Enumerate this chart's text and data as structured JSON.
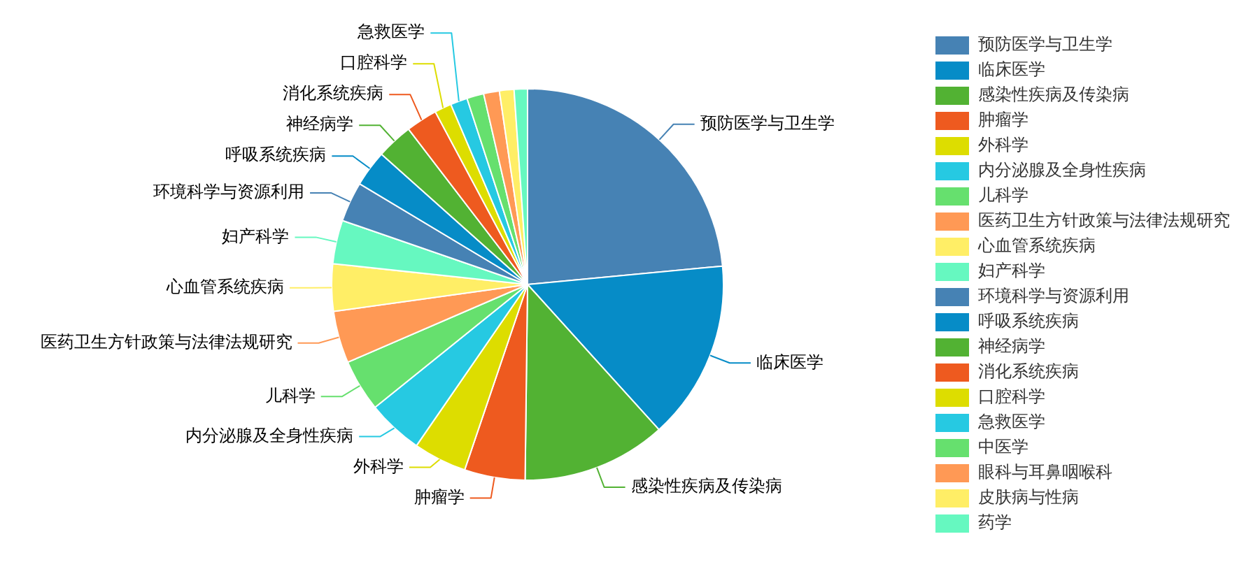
{
  "chart_data": {
    "type": "pie",
    "categories": [
      "预防医学与卫生学",
      "临床医学",
      "感染性疾病及传染病",
      "肿瘤学",
      "外科学",
      "内分泌腺及全身性疾病",
      "儿科学",
      "医药卫生方针政策与法律法规研究",
      "心血管系统疾病",
      "妇产科学",
      "环境科学与资源利用",
      "呼吸系统疾病",
      "神经病学",
      "消化系统疾病",
      "口腔科学",
      "急救医学",
      "中医学",
      "眼科与耳鼻咽喉科",
      "皮肤病与性病",
      "药学"
    ],
    "values": [
      23.5,
      14.8,
      11.9,
      5.0,
      4.4,
      4.6,
      4.3,
      4.3,
      3.9,
      3.6,
      3.3,
      3.0,
      3.0,
      2.6,
      1.4,
      1.4,
      1.4,
      1.3,
      1.2,
      1.1
    ],
    "colors": [
      "#4682b4",
      "#068cc7",
      "#52b233",
      "#ee5a1f",
      "#dddd00",
      "#26c9e2",
      "#66e06e",
      "#ff9955",
      "#ffee66",
      "#66f8c0",
      "#4682b4",
      "#068cc7",
      "#52b233",
      "#ee5a1f",
      "#dddd00",
      "#26c9e2",
      "#66e06e",
      "#ff9955",
      "#ffee66",
      "#66f8c0"
    ],
    "legend": "right"
  }
}
